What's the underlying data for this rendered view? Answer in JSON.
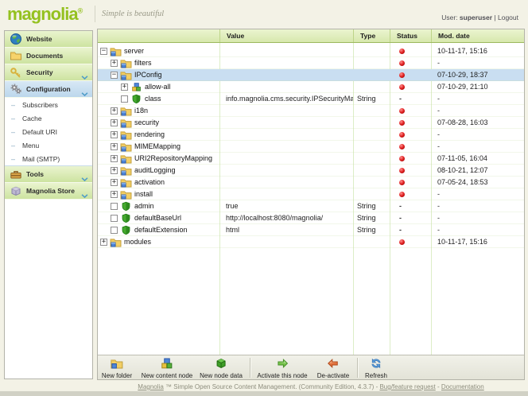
{
  "header": {
    "logo_text": "magnolia",
    "logo_mark": "®",
    "tagline": "Simple is beautiful",
    "user_label": "User:",
    "username": "superuser",
    "divider": "|",
    "logout_label": "Logout"
  },
  "sidebar": {
    "items": [
      {
        "label": "Website",
        "icon": "globe-icon"
      },
      {
        "label": "Documents",
        "icon": "folder-icon"
      },
      {
        "label": "Security",
        "icon": "key-icon",
        "chevron": true
      },
      {
        "label": "Configuration",
        "icon": "gears-icon",
        "chevron": true,
        "selected": true,
        "subitems": [
          {
            "label": "Subscribers"
          },
          {
            "label": "Cache"
          },
          {
            "label": "Default URI"
          },
          {
            "label": "Menu"
          },
          {
            "label": "Mail (SMTP)"
          }
        ]
      },
      {
        "label": "Tools",
        "icon": "toolbox-icon",
        "chevron": true
      },
      {
        "label": "Magnolia Store",
        "icon": "store-icon",
        "chevron": true
      }
    ]
  },
  "table": {
    "columns": [
      "",
      "Value",
      "Type",
      "Status",
      "Mod. date"
    ],
    "rows": [
      {
        "label": "server",
        "level": 0,
        "expander": "minus",
        "icon": "content-folder-icon",
        "value": "",
        "type": "",
        "status": "red",
        "date": "10-11-17, 15:16"
      },
      {
        "label": "filters",
        "level": 1,
        "expander": "plus",
        "icon": "content-folder-icon",
        "value": "",
        "type": "",
        "status": "red",
        "date": "-"
      },
      {
        "label": "IPConfig",
        "level": 1,
        "expander": "minus",
        "icon": "content-folder-icon",
        "value": "",
        "type": "",
        "status": "red",
        "date": "07-10-29, 18:37",
        "selected": true
      },
      {
        "label": "allow-all",
        "level": 2,
        "expander": "plus",
        "icon": "content-node-icon",
        "value": "",
        "type": "",
        "status": "red",
        "date": "07-10-29, 21:10"
      },
      {
        "label": "class",
        "level": 2,
        "expander": "leaf",
        "icon": "shield-icon",
        "value": "info.magnolia.cms.security.IPSecurityMa",
        "type": "String",
        "status": "-",
        "date": "-"
      },
      {
        "label": "i18n",
        "level": 1,
        "expander": "plus",
        "icon": "content-folder-icon",
        "value": "",
        "type": "",
        "status": "red",
        "date": "-"
      },
      {
        "label": "security",
        "level": 1,
        "expander": "plus",
        "icon": "content-folder-icon",
        "value": "",
        "type": "",
        "status": "red",
        "date": "07-08-28, 16:03"
      },
      {
        "label": "rendering",
        "level": 1,
        "expander": "plus",
        "icon": "content-folder-icon",
        "value": "",
        "type": "",
        "status": "red",
        "date": "-"
      },
      {
        "label": "MIMEMapping",
        "level": 1,
        "expander": "plus",
        "icon": "content-folder-icon",
        "value": "",
        "type": "",
        "status": "red",
        "date": "-"
      },
      {
        "label": "URI2RepositoryMapping",
        "level": 1,
        "expander": "plus",
        "icon": "content-folder-icon",
        "value": "",
        "type": "",
        "status": "red",
        "date": "07-11-05, 16:04"
      },
      {
        "label": "auditLogging",
        "level": 1,
        "expander": "plus",
        "icon": "content-folder-icon",
        "value": "",
        "type": "",
        "status": "red",
        "date": "08-10-21, 12:07"
      },
      {
        "label": "activation",
        "level": 1,
        "expander": "plus",
        "icon": "content-folder-icon",
        "value": "",
        "type": "",
        "status": "red",
        "date": "07-05-24, 18:53"
      },
      {
        "label": "install",
        "level": 1,
        "expander": "plus",
        "icon": "content-folder-icon",
        "value": "",
        "type": "",
        "status": "red",
        "date": "-"
      },
      {
        "label": "admin",
        "level": 1,
        "expander": "leaf",
        "icon": "shield-icon",
        "value": "true",
        "type": "String",
        "status": "-",
        "date": "-"
      },
      {
        "label": "defaultBaseUrl",
        "level": 1,
        "expander": "leaf",
        "icon": "shield-icon",
        "value": "http://localhost:8080/magnolia/",
        "type": "String",
        "status": "-",
        "date": "-"
      },
      {
        "label": "defaultExtension",
        "level": 1,
        "expander": "leaf",
        "icon": "shield-icon",
        "value": "html",
        "type": "String",
        "status": "-",
        "date": "-"
      },
      {
        "label": "modules",
        "level": 0,
        "expander": "plus",
        "icon": "content-folder-icon",
        "value": "",
        "type": "",
        "status": "red",
        "date": "10-11-17, 15:16"
      }
    ]
  },
  "toolbar": {
    "buttons": [
      {
        "label": "New folder",
        "icon": "new-folder-icon"
      },
      {
        "label": "New content node",
        "icon": "content-node-icon"
      },
      {
        "label": "New node data",
        "icon": "green-cube-icon"
      },
      {
        "label": "Activate this node",
        "icon": "activate-arrow-icon"
      },
      {
        "label": "De-activate",
        "icon": "deactivate-arrow-icon"
      },
      {
        "label": "Refresh",
        "icon": "refresh-icon"
      }
    ]
  },
  "footer": {
    "brand_link": "Magnolia",
    "text": "™ Simple Open Source Content Management. (Community Edition, 4.3.7) -",
    "bug_link": "Bug/feature request",
    "separator": "-",
    "docs_link": "Documentation"
  },
  "colors": {
    "brand_green": "#94c11f",
    "selected_blue": "#c9def1",
    "status_red": "#df2020",
    "header_green": "#d7e8ad"
  }
}
